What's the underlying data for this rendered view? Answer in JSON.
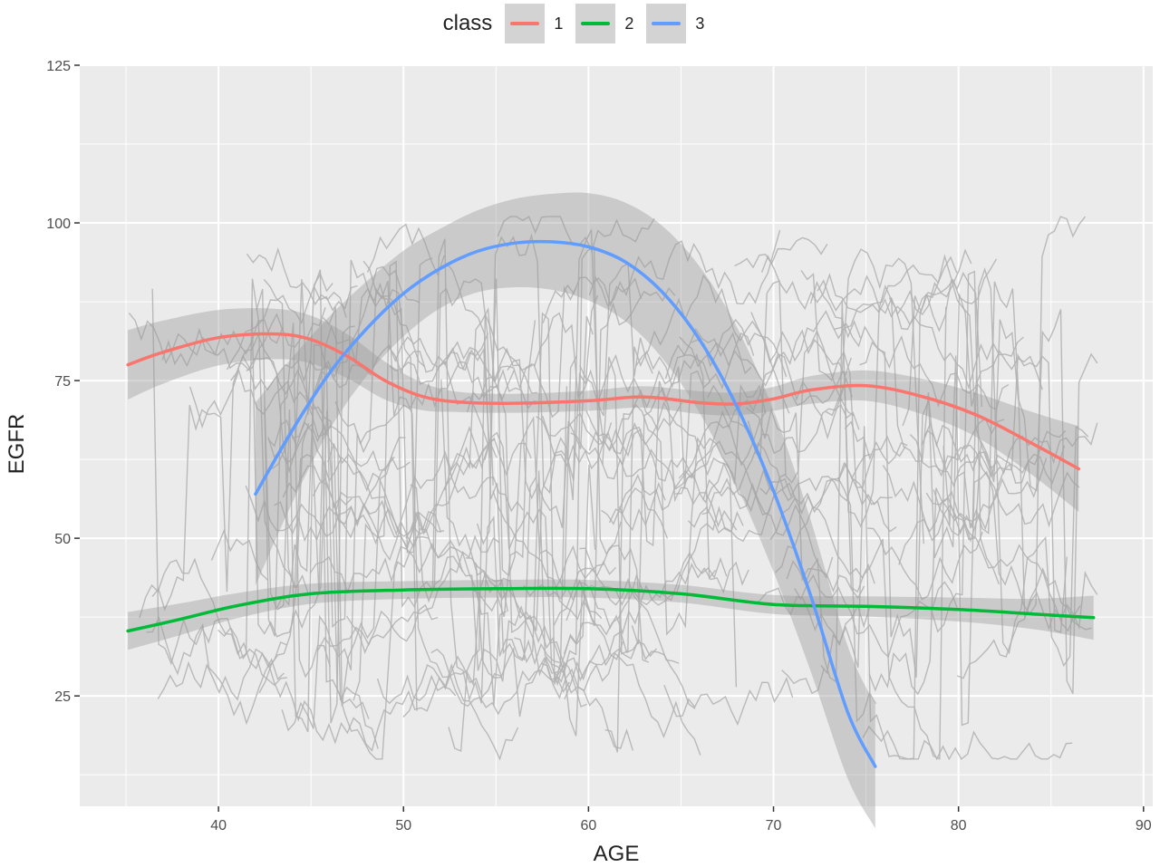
{
  "chart_data": {
    "type": "line",
    "xlabel": "AGE",
    "ylabel": "EGFR",
    "xlim": [
      32.5,
      90.5
    ],
    "ylim": [
      7.5,
      125
    ],
    "x_ticks": [
      40,
      50,
      60,
      70,
      80,
      90
    ],
    "y_ticks": [
      25,
      50,
      75,
      100,
      125
    ],
    "grid": true,
    "legend": {
      "title": "class",
      "position": "top"
    },
    "series": [
      {
        "name": "1",
        "color": "#F8766D",
        "x": [
          35.1,
          37,
          40,
          43,
          45,
          47,
          49,
          51,
          53,
          56,
          60,
          63,
          66,
          68,
          70,
          72,
          75,
          78,
          81,
          84,
          86.5
        ],
        "y": [
          77.5,
          79.5,
          81.8,
          82.4,
          81.5,
          78.8,
          75.0,
          72.5,
          71.6,
          71.4,
          71.8,
          72.4,
          71.5,
          71.3,
          72.1,
          73.5,
          74.2,
          72.5,
          69.5,
          65.0,
          61.0
        ],
        "ci_half_width": [
          5.5,
          5.0,
          4.4,
          4.0,
          3.8,
          3.5,
          3.0,
          2.2,
          1.6,
          1.5,
          1.6,
          1.7,
          1.8,
          1.8,
          1.9,
          2.2,
          2.4,
          2.8,
          3.5,
          5.0,
          6.8
        ]
      },
      {
        "name": "2",
        "color": "#00BA38",
        "x": [
          35.1,
          38,
          41,
          45,
          50,
          55,
          60,
          65,
          70,
          75,
          80,
          84,
          87.3
        ],
        "y": [
          35.3,
          37.2,
          39.3,
          41.2,
          41.8,
          42.0,
          42.0,
          41.2,
          39.5,
          39.2,
          38.7,
          38.0,
          37.4
        ],
        "ci_half_width": [
          3.0,
          2.5,
          2.0,
          1.6,
          1.4,
          1.4,
          1.4,
          1.4,
          1.5,
          1.6,
          1.9,
          2.4,
          3.5
        ]
      },
      {
        "name": "3",
        "color": "#619CFF",
        "x": [
          42,
          44,
          46,
          48,
          50,
          52,
          54,
          56,
          58,
          60,
          62,
          64,
          66,
          68,
          70,
          72,
          74,
          75.5
        ],
        "y": [
          57.0,
          67.2,
          76.2,
          83.2,
          88.8,
          92.8,
          95.5,
          96.8,
          97.0,
          96.2,
          93.8,
          89.0,
          81.5,
          71.0,
          57.5,
          41.0,
          22.5,
          13.8
        ],
        "ci_half_width": [
          14.5,
          11.5,
          9.0,
          7.5,
          6.8,
          6.3,
          6.5,
          7.0,
          7.6,
          8.5,
          9.4,
          10.5,
          11.6,
          12.6,
          12.8,
          12.0,
          10.5,
          9.8
        ]
      }
    ],
    "background_trajectories": {
      "color": "#B0B0B0",
      "description_count": 140
    }
  }
}
